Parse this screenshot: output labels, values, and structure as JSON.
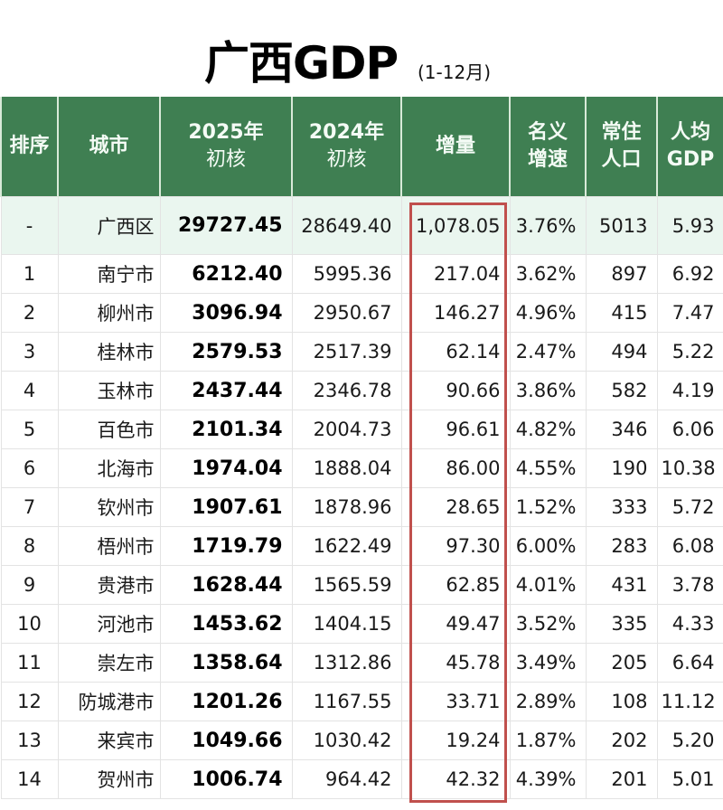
{
  "title": "广西GDP",
  "subtitle": "(1-12月)",
  "colors": {
    "header_bg": "#3f7f52",
    "header_text": "#f4fbf5",
    "region_row_bg": "#eaf6ef",
    "highlight_border": "#c0504d"
  },
  "table": {
    "headers": [
      {
        "line1": "排序",
        "line2": ""
      },
      {
        "line1": "城市",
        "line2": ""
      },
      {
        "line1": "2025年",
        "line2": "初核"
      },
      {
        "line1": "2024年",
        "line2": "初核"
      },
      {
        "line1": "增量",
        "line2": ""
      },
      {
        "line1": "名义",
        "line2": "增速"
      },
      {
        "line1": "常住",
        "line2": "人口"
      },
      {
        "line1": "人均",
        "line2": "GDP"
      }
    ],
    "rows": [
      {
        "rank": "-",
        "city": "广西区",
        "gdp_2025": "29727.45",
        "gdp_2024": "28649.40",
        "increase": "1,078.05",
        "growth": "3.76%",
        "population": "5013",
        "per_capita": "5.93"
      },
      {
        "rank": "1",
        "city": "南宁市",
        "gdp_2025": "6212.40",
        "gdp_2024": "5995.36",
        "increase": "217.04",
        "growth": "3.62%",
        "population": "897",
        "per_capita": "6.92"
      },
      {
        "rank": "2",
        "city": "柳州市",
        "gdp_2025": "3096.94",
        "gdp_2024": "2950.67",
        "increase": "146.27",
        "growth": "4.96%",
        "population": "415",
        "per_capita": "7.47"
      },
      {
        "rank": "3",
        "city": "桂林市",
        "gdp_2025": "2579.53",
        "gdp_2024": "2517.39",
        "increase": "62.14",
        "growth": "2.47%",
        "population": "494",
        "per_capita": "5.22"
      },
      {
        "rank": "4",
        "city": "玉林市",
        "gdp_2025": "2437.44",
        "gdp_2024": "2346.78",
        "increase": "90.66",
        "growth": "3.86%",
        "population": "582",
        "per_capita": "4.19"
      },
      {
        "rank": "5",
        "city": "百色市",
        "gdp_2025": "2101.34",
        "gdp_2024": "2004.73",
        "increase": "96.61",
        "growth": "4.82%",
        "population": "346",
        "per_capita": "6.06"
      },
      {
        "rank": "6",
        "city": "北海市",
        "gdp_2025": "1974.04",
        "gdp_2024": "1888.04",
        "increase": "86.00",
        "growth": "4.55%",
        "population": "190",
        "per_capita": "10.38"
      },
      {
        "rank": "7",
        "city": "钦州市",
        "gdp_2025": "1907.61",
        "gdp_2024": "1878.96",
        "increase": "28.65",
        "growth": "1.52%",
        "population": "333",
        "per_capita": "5.72"
      },
      {
        "rank": "8",
        "city": "梧州市",
        "gdp_2025": "1719.79",
        "gdp_2024": "1622.49",
        "increase": "97.30",
        "growth": "6.00%",
        "population": "283",
        "per_capita": "6.08"
      },
      {
        "rank": "9",
        "city": "贵港市",
        "gdp_2025": "1628.44",
        "gdp_2024": "1565.59",
        "increase": "62.85",
        "growth": "4.01%",
        "population": "431",
        "per_capita": "3.78"
      },
      {
        "rank": "10",
        "city": "河池市",
        "gdp_2025": "1453.62",
        "gdp_2024": "1404.15",
        "increase": "49.47",
        "growth": "3.52%",
        "population": "335",
        "per_capita": "4.33"
      },
      {
        "rank": "11",
        "city": "崇左市",
        "gdp_2025": "1358.64",
        "gdp_2024": "1312.86",
        "increase": "45.78",
        "growth": "3.49%",
        "population": "205",
        "per_capita": "6.64"
      },
      {
        "rank": "12",
        "city": "防城港市",
        "gdp_2025": "1201.26",
        "gdp_2024": "1167.55",
        "increase": "33.71",
        "growth": "2.89%",
        "population": "108",
        "per_capita": "11.12"
      },
      {
        "rank": "13",
        "city": "来宾市",
        "gdp_2025": "1049.66",
        "gdp_2024": "1030.42",
        "increase": "19.24",
        "growth": "1.87%",
        "population": "202",
        "per_capita": "5.20"
      },
      {
        "rank": "14",
        "city": "贺州市",
        "gdp_2025": "1006.74",
        "gdp_2024": "964.42",
        "increase": "42.32",
        "growth": "4.39%",
        "population": "201",
        "per_capita": "5.01"
      }
    ]
  }
}
